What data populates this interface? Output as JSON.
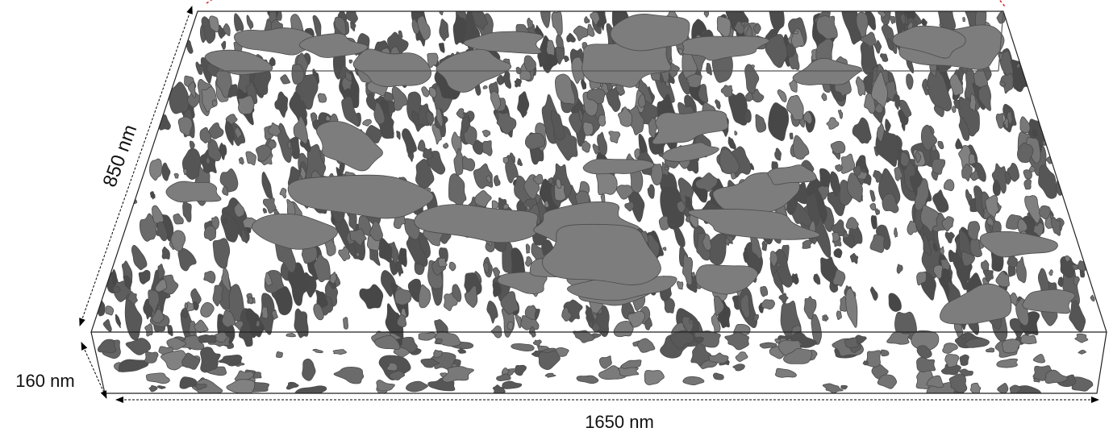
{
  "figure": {
    "dimensions": {
      "depth": "850 nm",
      "height": "160 nm",
      "width": "1650 nm"
    },
    "colors": {
      "background": "#ffffff",
      "particle_fill": "#7d7d7d",
      "particle_edge": "#4a4a4a",
      "box_edge": "#222222",
      "corner_marker": "#d62020"
    }
  }
}
